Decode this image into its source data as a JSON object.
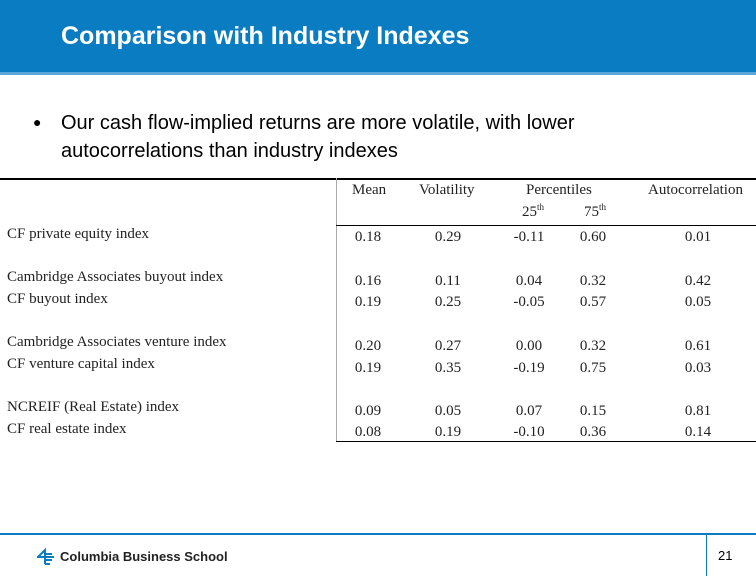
{
  "header": {
    "title": "Comparison with Industry Indexes"
  },
  "bullet": {
    "symbol": "●",
    "line1": "Our cash flow-implied returns are more volatile, with lower",
    "line2": "autocorrelations than industry indexes"
  },
  "table": {
    "columns": {
      "mean": "Mean",
      "volatility": "Volatility",
      "percentiles": "Percentiles",
      "p25": "25",
      "p25_sup": "th",
      "p75": "75",
      "p75_sup": "th",
      "autocorrelation": "Autocorrelation"
    },
    "rows": [
      {
        "label": "CF private equity index",
        "mean": "0.18",
        "volatility": "0.29",
        "p25": "-0.11",
        "p75": "0.60",
        "auto": "0.01"
      },
      {
        "label": "Cambridge Associates buyout index",
        "mean": "0.16",
        "volatility": "0.11",
        "p25": "0.04",
        "p75": "0.32",
        "auto": "0.42"
      },
      {
        "label": "CF buyout index",
        "mean": "0.19",
        "volatility": "0.25",
        "p25": "-0.05",
        "p75": "0.57",
        "auto": "0.05"
      },
      {
        "label": "Cambridge Associates venture index",
        "mean": "0.20",
        "volatility": "0.27",
        "p25": "0.00",
        "p75": "0.32",
        "auto": "0.61"
      },
      {
        "label": "CF venture capital index",
        "mean": "0.19",
        "volatility": "0.35",
        "p25": "-0.19",
        "p75": "0.75",
        "auto": "0.03"
      },
      {
        "label": "NCREIF (Real Estate)  index",
        "mean": "0.09",
        "volatility": "0.05",
        "p25": "0.07",
        "p75": "0.15",
        "auto": "0.81"
      },
      {
        "label": "CF real estate index",
        "mean": "0.08",
        "volatility": "0.19",
        "p25": "-0.10",
        "p75": "0.36",
        "auto": "0.14"
      }
    ]
  },
  "footer": {
    "logo_text": "Columbia Business School",
    "page_number": "21"
  },
  "colors": {
    "brand_blue": "#0a7cc1"
  }
}
